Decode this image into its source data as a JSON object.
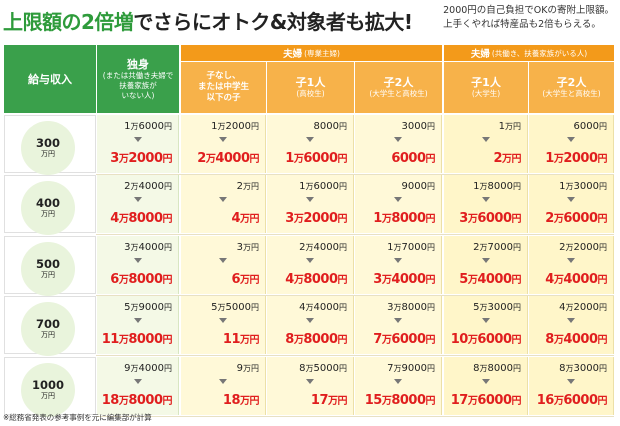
{
  "title": {
    "part1": "上限額の2倍増",
    "part2": "でさらにオトク&対象者も拡大!"
  },
  "note": [
    "2000円の自己負担でOKの寄附上限額。",
    "上手くやれば特産品も2倍もらえる。"
  ],
  "header": {
    "salary_label": "給与収入",
    "single": {
      "main": "独身",
      "sub": [
        "(または共働き夫婦で",
        "扶養家族が",
        "いない人)"
      ]
    },
    "group_housewife": {
      "main": "夫婦",
      "sub": "(専業主婦)"
    },
    "group_dual": {
      "main": "夫婦",
      "sub": "(共働き、扶養家族がいる人)"
    },
    "cols": [
      {
        "main": [
          "子なし、",
          "または中学生",
          "以下の子"
        ],
        "sub": []
      },
      {
        "main": [
          "子1人"
        ],
        "sub": [
          "(高校生)"
        ]
      },
      {
        "main": [
          "子2人"
        ],
        "sub": [
          "(大学生と高校生)"
        ]
      },
      {
        "main": [
          "子1人"
        ],
        "sub": [
          "(大学生)"
        ]
      },
      {
        "main": [
          "子2人"
        ],
        "sub": [
          "(大学生と高校生)"
        ]
      }
    ]
  },
  "rows": [
    {
      "salary": "300",
      "unit": "万円",
      "cells": [
        {
          "before": [
            "1",
            "万",
            "6000",
            "円"
          ],
          "after": [
            "3",
            "万",
            "2000",
            "円"
          ]
        },
        {
          "before": [
            "1",
            "万",
            "2000",
            "円"
          ],
          "after": [
            "2",
            "万",
            "4000",
            "円"
          ]
        },
        {
          "before": [
            "",
            "",
            "8000",
            "円"
          ],
          "after": [
            "1",
            "万",
            "6000",
            "円"
          ]
        },
        {
          "before": [
            "",
            "",
            "3000",
            "円"
          ],
          "after": [
            "",
            "",
            "6000",
            "円"
          ]
        },
        {
          "before": [
            "1",
            "万",
            "",
            "円"
          ],
          "after": [
            "2",
            "万",
            "",
            "円"
          ]
        },
        {
          "before": [
            "",
            "",
            "6000",
            "円"
          ],
          "after": [
            "1",
            "万",
            "2000",
            "円"
          ]
        }
      ]
    },
    {
      "salary": "400",
      "unit": "万円",
      "cells": [
        {
          "before": [
            "2",
            "万",
            "4000",
            "円"
          ],
          "after": [
            "4",
            "万",
            "8000",
            "円"
          ]
        },
        {
          "before": [
            "2",
            "万",
            "",
            "円"
          ],
          "after": [
            "4",
            "万",
            "",
            "円"
          ]
        },
        {
          "before": [
            "1",
            "万",
            "6000",
            "円"
          ],
          "after": [
            "3",
            "万",
            "2000",
            "円"
          ]
        },
        {
          "before": [
            "",
            "",
            "9000",
            "円"
          ],
          "after": [
            "1",
            "万",
            "8000",
            "円"
          ]
        },
        {
          "before": [
            "1",
            "万",
            "8000",
            "円"
          ],
          "after": [
            "3",
            "万",
            "6000",
            "円"
          ]
        },
        {
          "before": [
            "1",
            "万",
            "3000",
            "円"
          ],
          "after": [
            "2",
            "万",
            "6000",
            "円"
          ]
        }
      ]
    },
    {
      "salary": "500",
      "unit": "万円",
      "cells": [
        {
          "before": [
            "3",
            "万",
            "4000",
            "円"
          ],
          "after": [
            "6",
            "万",
            "8000",
            "円"
          ]
        },
        {
          "before": [
            "3",
            "万",
            "",
            "円"
          ],
          "after": [
            "6",
            "万",
            "",
            "円"
          ]
        },
        {
          "before": [
            "2",
            "万",
            "4000",
            "円"
          ],
          "after": [
            "4",
            "万",
            "8000",
            "円"
          ]
        },
        {
          "before": [
            "1",
            "万",
            "7000",
            "円"
          ],
          "after": [
            "3",
            "万",
            "4000",
            "円"
          ]
        },
        {
          "before": [
            "2",
            "万",
            "7000",
            "円"
          ],
          "after": [
            "5",
            "万",
            "4000",
            "円"
          ]
        },
        {
          "before": [
            "2",
            "万",
            "2000",
            "円"
          ],
          "after": [
            "4",
            "万",
            "4000",
            "円"
          ]
        }
      ]
    },
    {
      "salary": "700",
      "unit": "万円",
      "cells": [
        {
          "before": [
            "5",
            "万",
            "9000",
            "円"
          ],
          "after": [
            "11",
            "万",
            "8000",
            "円"
          ]
        },
        {
          "before": [
            "5",
            "万",
            "5000",
            "円"
          ],
          "after": [
            "11",
            "万",
            "",
            "円"
          ]
        },
        {
          "before": [
            "4",
            "万",
            "4000",
            "円"
          ],
          "after": [
            "8",
            "万",
            "8000",
            "円"
          ]
        },
        {
          "before": [
            "3",
            "万",
            "8000",
            "円"
          ],
          "after": [
            "7",
            "万",
            "6000",
            "円"
          ]
        },
        {
          "before": [
            "5",
            "万",
            "3000",
            "円"
          ],
          "after": [
            "10",
            "万",
            "6000",
            "円"
          ]
        },
        {
          "before": [
            "4",
            "万",
            "2000",
            "円"
          ],
          "after": [
            "8",
            "万",
            "4000",
            "円"
          ]
        }
      ]
    },
    {
      "salary": "1000",
      "unit": "万円",
      "cells": [
        {
          "before": [
            "9",
            "万",
            "4000",
            "円"
          ],
          "after": [
            "18",
            "万",
            "8000",
            "円"
          ]
        },
        {
          "before": [
            "9",
            "万",
            "",
            "円"
          ],
          "after": [
            "18",
            "万",
            "",
            "円"
          ]
        },
        {
          "before": [
            "8",
            "万",
            "5000",
            "円"
          ],
          "after": [
            "17",
            "万",
            "",
            "円"
          ]
        },
        {
          "before": [
            "7",
            "万",
            "9000",
            "円"
          ],
          "after": [
            "15",
            "万",
            "8000",
            "円"
          ]
        },
        {
          "before": [
            "8",
            "万",
            "8000",
            "円"
          ],
          "after": [
            "17",
            "万",
            "6000",
            "円"
          ]
        },
        {
          "before": [
            "8",
            "万",
            "3000",
            "円"
          ],
          "after": [
            "16",
            "万",
            "6000",
            "円"
          ]
        }
      ]
    }
  ],
  "footnote": "※総務省発表の参考事例を元に編集部が計算",
  "colors": {
    "green": "#3aa04b",
    "orange": "#f39a1a",
    "red": "#e01e1e",
    "green_bg": "#f4f9e6",
    "yellow_bg": "#fff9d8"
  }
}
